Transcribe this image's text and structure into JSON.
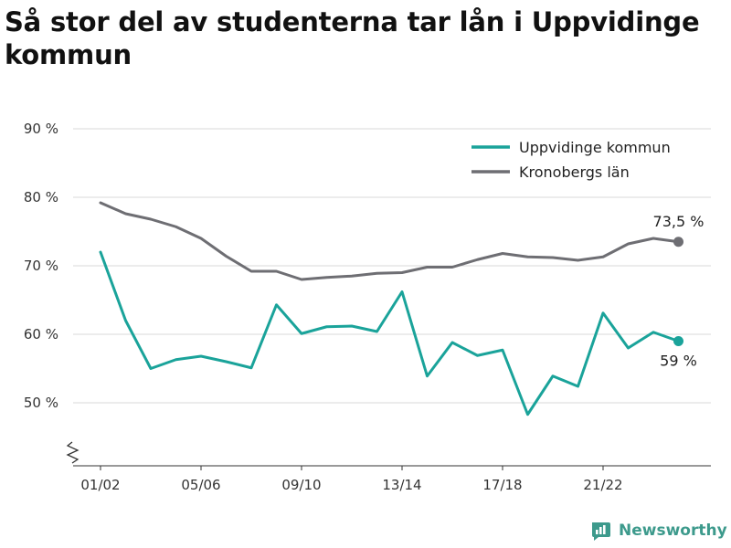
{
  "title": "Så stor del av studenterna tar lån i Uppvidinge kommun",
  "brand": {
    "name": "Newsworthy",
    "icon": "newsworthy-logo-icon"
  },
  "colors": {
    "uppvidinge": "#1aa39a",
    "kronoberg": "#6e6e73",
    "grid": "#d9d9d9",
    "brand": "#3d9a8c"
  },
  "chart_data": {
    "type": "line",
    "title": "Så stor del av studenterna tar lån i Uppvidinge kommun",
    "xlabel": "",
    "ylabel": "",
    "y_ticks": [
      "50 %",
      "60 %",
      "70 %",
      "80 %",
      "90 %"
    ],
    "y_tick_values": [
      50,
      60,
      70,
      80,
      90
    ],
    "ylim": [
      41,
      92
    ],
    "y_axis_break": true,
    "x_tick_labels": [
      "01/02",
      "05/06",
      "09/10",
      "13/14",
      "17/18",
      "21/22"
    ],
    "x_tick_indices": [
      0,
      4,
      8,
      12,
      16,
      20
    ],
    "categories": [
      "01/02",
      "02/03",
      "03/04",
      "04/05",
      "05/06",
      "06/07",
      "07/08",
      "08/09",
      "09/10",
      "10/11",
      "11/12",
      "12/13",
      "13/14",
      "14/15",
      "15/16",
      "16/17",
      "17/18",
      "18/19",
      "19/20",
      "20/21",
      "21/22",
      "22/23",
      "23/24",
      "24/25"
    ],
    "legend_position": "top-right",
    "grid": true,
    "series": [
      {
        "name": "Uppvidinge kommun",
        "values": [
          72.0,
          62.0,
          55.0,
          56.3,
          56.8,
          56.0,
          55.1,
          64.3,
          60.1,
          61.1,
          61.2,
          60.4,
          66.2,
          53.9,
          58.8,
          56.9,
          57.7,
          48.3,
          53.9,
          52.4,
          63.1,
          58.0,
          60.3,
          59.0
        ],
        "end_label": "59 %"
      },
      {
        "name": "Kronobergs län",
        "values": [
          79.2,
          77.6,
          76.8,
          75.7,
          74.0,
          71.4,
          69.2,
          69.2,
          68.0,
          68.3,
          68.5,
          68.9,
          69.0,
          69.8,
          69.8,
          70.9,
          71.8,
          71.3,
          71.2,
          70.8,
          71.3,
          73.2,
          74.0,
          73.5
        ],
        "end_label": "73,5 %"
      }
    ]
  }
}
